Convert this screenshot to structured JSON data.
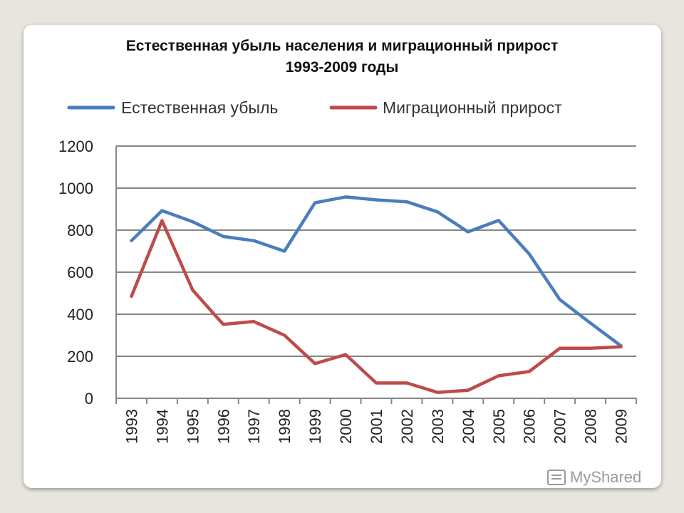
{
  "title_line1": "Естественная убыль населения и миграционный прирост",
  "title_line2": "1993-2009 годы",
  "watermark": "MyShared",
  "chart_data": {
    "type": "line",
    "title": "Естественная убыль населения и миграционный прирост 1993-2009 годы",
    "categories": [
      "1993",
      "1994",
      "1995",
      "1996",
      "1997",
      "1998",
      "1999",
      "2000",
      "2001",
      "2002",
      "2003",
      "2004",
      "2005",
      "2006",
      "2007",
      "2008",
      "2009"
    ],
    "series": [
      {
        "name": "Естественная убыль",
        "color": "#4a7ebb",
        "values": [
          750,
          893,
          840,
          770,
          750,
          700,
          930,
          958,
          944,
          935,
          887,
          792,
          846,
          687,
          470,
          358,
          250
        ]
      },
      {
        "name": "Миграционный прирост",
        "color": "#be4b48",
        "values": [
          485,
          845,
          515,
          352,
          365,
          300,
          165,
          208,
          73,
          73,
          28,
          38,
          107,
          127,
          238,
          238,
          245
        ]
      }
    ],
    "ylim": [
      0,
      1200
    ],
    "yticks": [
      0,
      200,
      400,
      600,
      800,
      1000,
      1200
    ],
    "grid": true,
    "legend": "top"
  }
}
